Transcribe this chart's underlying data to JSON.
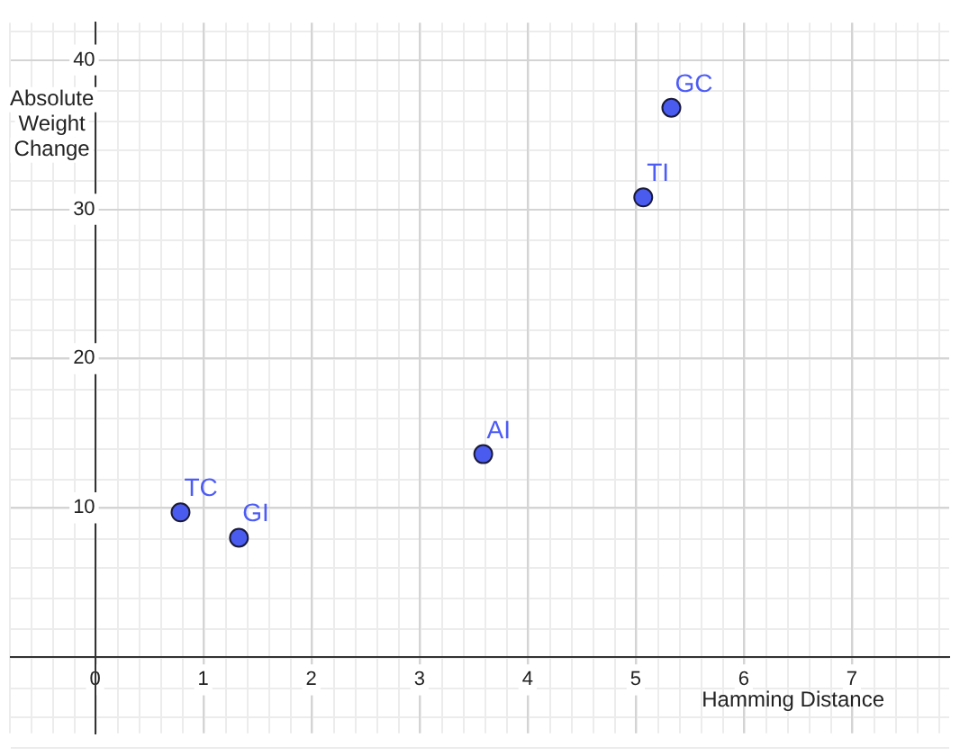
{
  "chart_data": {
    "type": "scatter",
    "xlabel": "Hamming Distance",
    "ylabel": "Absolute Weight Change",
    "x": [
      0.79,
      1.33,
      3.59,
      5.07,
      5.33
    ],
    "series": [
      {
        "color": "#4a5cf0",
        "values": [
          9.7,
          8.0,
          13.6,
          30.8,
          36.8
        ]
      }
    ],
    "annotations": [
      {
        "text": "TC",
        "x": 0.79,
        "y": 9.7
      },
      {
        "text": "GI",
        "x": 1.33,
        "y": 8.0
      },
      {
        "text": "AI",
        "x": 3.59,
        "y": 13.6
      },
      {
        "text": "TI",
        "x": 5.07,
        "y": 30.8
      },
      {
        "text": "GC",
        "x": 5.33,
        "y": 36.8
      }
    ],
    "xlim": [
      -0.78,
      7.9
    ],
    "ylim": [
      -5.1,
      42.5
    ],
    "xticks": [
      0,
      1,
      2,
      3,
      4,
      5,
      6,
      7
    ],
    "yticks": [
      10,
      20,
      30,
      40
    ],
    "grid": true,
    "marker": "circle",
    "legend": false
  }
}
